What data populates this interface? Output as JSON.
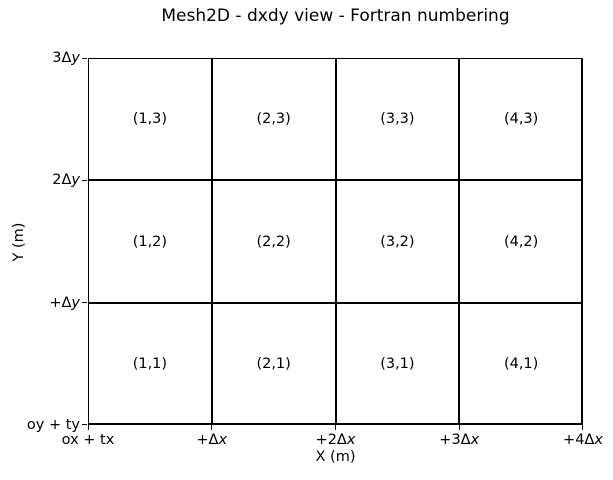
{
  "chart_data": {
    "type": "table",
    "title": "Mesh2D - dxdy view - Fortran numbering",
    "xlabel": "X (m)",
    "ylabel": "Y (m)",
    "x_tick_labels": [
      "ox + tx",
      "+Δx",
      "+2Δx",
      "+3Δx",
      "+4Δx"
    ],
    "y_tick_labels": [
      "oy + ty",
      "+Δy",
      "2Δy",
      "3Δy"
    ],
    "grid": {
      "ncols": 4,
      "nrows": 3,
      "grid_on": true
    },
    "cells": [
      {
        "i": 1,
        "j": 1,
        "label": "(1,1)"
      },
      {
        "i": 2,
        "j": 1,
        "label": "(2,1)"
      },
      {
        "i": 3,
        "j": 1,
        "label": "(3,1)"
      },
      {
        "i": 4,
        "j": 1,
        "label": "(4,1)"
      },
      {
        "i": 1,
        "j": 2,
        "label": "(1,2)"
      },
      {
        "i": 2,
        "j": 2,
        "label": "(2,2)"
      },
      {
        "i": 3,
        "j": 2,
        "label": "(3,2)"
      },
      {
        "i": 4,
        "j": 2,
        "label": "(4,2)"
      },
      {
        "i": 1,
        "j": 3,
        "label": "(1,3)"
      },
      {
        "i": 2,
        "j": 3,
        "label": "(2,3)"
      },
      {
        "i": 3,
        "j": 3,
        "label": "(3,3)"
      },
      {
        "i": 4,
        "j": 3,
        "label": "(4,3)"
      }
    ]
  },
  "axes": {
    "x_ticks": [
      {
        "pre": "ox + tx",
        "var": ""
      },
      {
        "pre": "+Δ",
        "var": "x"
      },
      {
        "pre": "+2Δ",
        "var": "x"
      },
      {
        "pre": "+3Δ",
        "var": "x"
      },
      {
        "pre": "+4Δ",
        "var": "x"
      }
    ],
    "y_ticks": [
      {
        "pre": "oy + ty",
        "var": ""
      },
      {
        "pre": "+Δ",
        "var": "y"
      },
      {
        "pre": "2Δ",
        "var": "y"
      },
      {
        "pre": "3Δ",
        "var": "y"
      }
    ]
  },
  "colors": {
    "background": "#ffffff",
    "line": "#000000",
    "text": "#000000"
  }
}
